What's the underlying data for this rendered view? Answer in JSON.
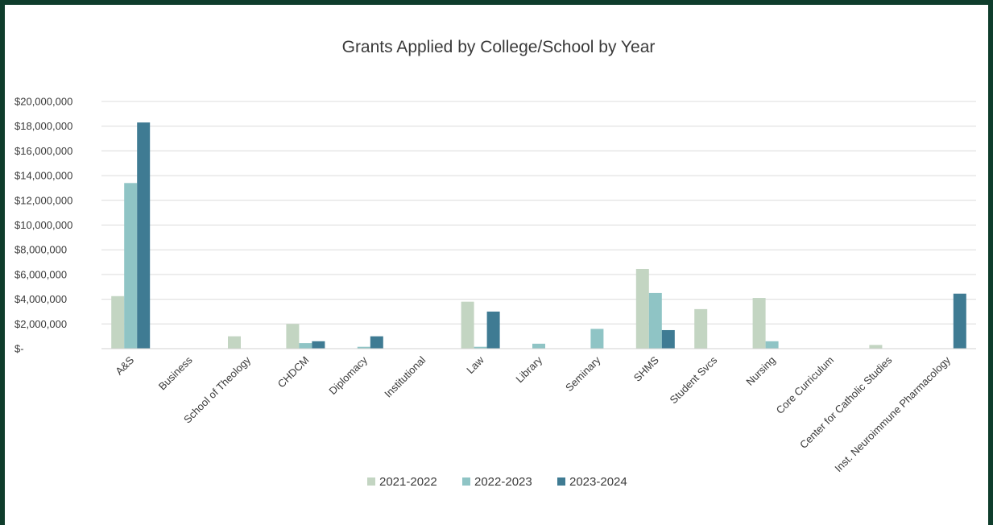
{
  "chart_data": {
    "type": "bar",
    "title": "Grants Applied by College/School by Year",
    "xlabel": "",
    "ylabel": "",
    "ylim": [
      0,
      20000000
    ],
    "y_ticks": [
      {
        "value": 0,
        "label": "$-"
      },
      {
        "value": 2000000,
        "label": "$2,000,000"
      },
      {
        "value": 4000000,
        "label": "$4,000,000"
      },
      {
        "value": 6000000,
        "label": "$6,000,000"
      },
      {
        "value": 8000000,
        "label": "$8,000,000"
      },
      {
        "value": 10000000,
        "label": "$10,000,000"
      },
      {
        "value": 12000000,
        "label": "$12,000,000"
      },
      {
        "value": 14000000,
        "label": "$14,000,000"
      },
      {
        "value": 16000000,
        "label": "$16,000,000"
      },
      {
        "value": 18000000,
        "label": "$18,000,000"
      },
      {
        "value": 20000000,
        "label": "$20,000,000"
      }
    ],
    "grid": true,
    "legend_position": "bottom",
    "categories": [
      "A&S",
      "Business",
      "School of Theology",
      "CHDCM",
      "Diplomacy",
      "Institutional",
      "Law",
      "Library",
      "Seminary",
      "SHMS",
      "Student Svcs",
      "Nursing",
      "Core Curriculum",
      "Center for Catholic Studies",
      "Inst. Neuroimmune Pharmacology"
    ],
    "series": [
      {
        "name": "2021-2022",
        "color": "#c3d5c2",
        "values": [
          4250000,
          0,
          1000000,
          2000000,
          0,
          0,
          3800000,
          0,
          0,
          6450000,
          3200000,
          4100000,
          0,
          300000,
          0
        ]
      },
      {
        "name": "2022-2023",
        "color": "#8fc4c5",
        "values": [
          13400000,
          0,
          0,
          450000,
          150000,
          0,
          150000,
          400000,
          1600000,
          4500000,
          0,
          600000,
          0,
          0,
          0
        ]
      },
      {
        "name": "2023-2024",
        "color": "#3f7b93",
        "values": [
          18300000,
          0,
          0,
          600000,
          1000000,
          0,
          3000000,
          0,
          0,
          1500000,
          0,
          0,
          0,
          0,
          4450000
        ]
      }
    ]
  }
}
